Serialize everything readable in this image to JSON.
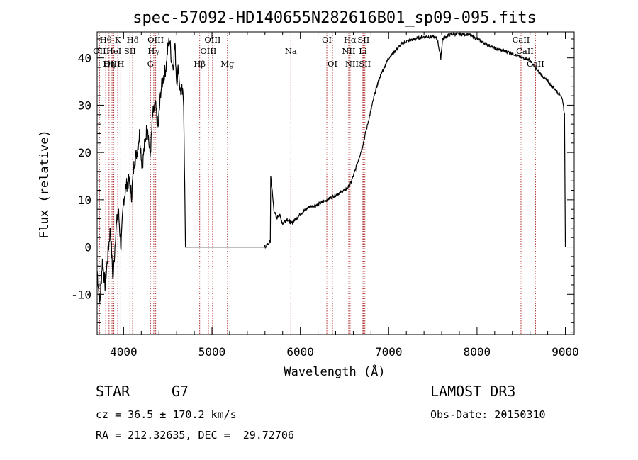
{
  "chart_data": {
    "type": "line",
    "title": "spec-57092-HD140655N282616B01_sp09-095.fits",
    "xlabel": "Wavelength (Å)",
    "ylabel": "Flux (relative)",
    "xlim": [
      3700,
      9100
    ],
    "ylim": [
      -18.5,
      45.5
    ],
    "xticks": [
      4000,
      5000,
      6000,
      7000,
      8000,
      9000
    ],
    "yticks": [
      -10,
      0,
      10,
      20,
      30,
      40
    ],
    "series": [
      {
        "name": "flux",
        "x": [
          3700,
          3730,
          3760,
          3790,
          3820,
          3850,
          3880,
          3910,
          3940,
          3970,
          4000,
          4030,
          4060,
          4090,
          4120,
          4150,
          4180,
          4210,
          4240,
          4270,
          4300,
          4330,
          4360,
          4390,
          4420,
          4450,
          4480,
          4500,
          4520,
          4540,
          4560,
          4580,
          4600,
          4620,
          4640,
          4660,
          4680,
          4700,
          5000,
          5300,
          5600,
          5660,
          5665,
          5680,
          5700,
          5730,
          5760,
          5800,
          5850,
          5900,
          5950,
          6000,
          6100,
          6200,
          6300,
          6400,
          6500,
          6560,
          6600,
          6650,
          6700,
          6750,
          6800,
          6850,
          6900,
          6950,
          7000,
          7050,
          7100,
          7150,
          7200,
          7300,
          7400,
          7500,
          7550,
          7590,
          7600,
          7610,
          7650,
          7700,
          7800,
          7900,
          8000,
          8100,
          8200,
          8300,
          8400,
          8500,
          8550,
          8600,
          8650,
          8700,
          8750,
          8800,
          8850,
          8900,
          8950,
          8970,
          8990,
          9000
        ],
        "y": [
          -5,
          -12,
          -3,
          -8,
          -2,
          4,
          -7,
          3,
          8,
          0,
          10,
          13,
          14,
          11,
          18,
          20,
          24,
          17,
          22,
          26,
          19,
          28,
          30,
          25,
          33,
          36,
          38,
          42,
          44,
          40,
          38,
          43,
          35,
          38,
          33,
          33,
          31,
          0,
          0,
          0,
          0,
          1,
          15,
          12,
          8,
          6,
          7,
          5,
          6,
          5,
          6,
          7,
          8.5,
          9,
          10,
          11,
          12,
          13,
          15,
          18,
          21,
          25,
          29,
          33,
          36,
          38,
          40,
          41,
          42,
          43,
          43.5,
          44,
          44.5,
          44.5,
          44,
          40,
          42,
          44,
          44.5,
          45,
          45,
          45,
          44,
          43,
          42,
          41.5,
          41,
          40,
          40,
          39.5,
          38,
          37,
          36,
          35,
          34,
          33,
          32,
          31,
          28,
          0
        ]
      }
    ],
    "emission_lines": [
      {
        "label": "Hθ",
        "x": 3798,
        "row": 1
      },
      {
        "label": "OII",
        "x": 3727,
        "row": 2
      },
      {
        "label": "OIII",
        "x": 3869,
        "row": 3
      },
      {
        "label": "K",
        "x": 3934,
        "row": 1
      },
      {
        "label": "HeI",
        "x": 3889,
        "row": 2
      },
      {
        "label": "Hη",
        "x": 3835,
        "row": 3
      },
      {
        "label": "Hδ",
        "x": 4102,
        "row": 1
      },
      {
        "label": "SII",
        "x": 4072,
        "row": 2
      },
      {
        "label": "H",
        "x": 3968,
        "row": 3
      },
      {
        "label": "OIII",
        "x": 4363,
        "row": 1
      },
      {
        "label": "Hγ",
        "x": 4341,
        "row": 2
      },
      {
        "label": "G",
        "x": 4304,
        "row": 3
      },
      {
        "label": "OIII",
        "x": 5007,
        "row": 1
      },
      {
        "label": "OIII",
        "x": 4959,
        "row": 2
      },
      {
        "label": "Hβ",
        "x": 4861,
        "row": 3
      },
      {
        "label": "Mg",
        "x": 5175,
        "row": 3
      },
      {
        "label": "Na",
        "x": 5893,
        "row": 2
      },
      {
        "label": "OI",
        "x": 6300,
        "row": 1
      },
      {
        "label": "OI",
        "x": 6364,
        "row": 3
      },
      {
        "label": "Hα",
        "x": 6563,
        "row": 1
      },
      {
        "label": "SII",
        "x": 6716,
        "row": 1
      },
      {
        "label": "NII",
        "x": 6548,
        "row": 2
      },
      {
        "label": "Li",
        "x": 6708,
        "row": 2
      },
      {
        "label": "NII",
        "x": 6584,
        "row": 3
      },
      {
        "label": "SII",
        "x": 6731,
        "row": 3
      },
      {
        "label": "CaII",
        "x": 8498,
        "row": 1
      },
      {
        "label": "CaII",
        "x": 8542,
        "row": 2
      },
      {
        "label": "CaII",
        "x": 8662,
        "row": 3
      }
    ]
  },
  "info": {
    "object_type": "STAR",
    "subclass": "G7",
    "survey": "LAMOST DR3",
    "redshift": "cz = 36.5 ± 170.2 km/s",
    "obs_date": "Obs-Date: 20150310",
    "coords": "RA = 212.32635, DEC =  29.72706"
  },
  "colors": {
    "spectrum": "#000000",
    "line_marker": "#b03030"
  }
}
